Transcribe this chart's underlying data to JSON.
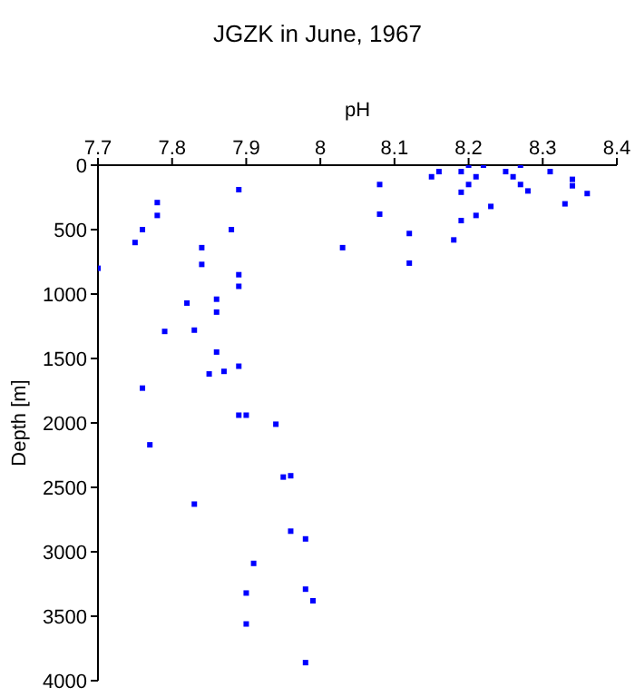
{
  "chart_data": {
    "type": "scatter",
    "title": "JGZK in June, 1967",
    "xlabel": "pH",
    "ylabel": "Depth [m]",
    "marker": "square",
    "series": [
      {
        "color": "#0000ff",
        "x": [
          7.89,
          7.78,
          7.78,
          7.76,
          7.75,
          7.88,
          7.84,
          7.84,
          7.7,
          8.03,
          7.89,
          7.89,
          7.82,
          7.86,
          7.86,
          7.79,
          7.83,
          7.86,
          7.89,
          7.87,
          7.85,
          7.76,
          7.89,
          7.9,
          7.94,
          7.77,
          7.95,
          7.96,
          7.83,
          7.96,
          7.98,
          7.91,
          7.9,
          7.98,
          7.99,
          7.9,
          7.98,
          8.08,
          8.08,
          8.15,
          8.16,
          8.19,
          8.2,
          8.22,
          8.19,
          8.2,
          8.21,
          8.19,
          8.21,
          8.23,
          8.25,
          8.26,
          8.27,
          8.27,
          8.28,
          8.31,
          8.34,
          8.34,
          8.36,
          8.33,
          8.12,
          8.12,
          8.18
        ],
        "values": [
          190,
          290,
          390,
          500,
          600,
          500,
          640,
          770,
          800,
          640,
          850,
          940,
          1070,
          1040,
          1140,
          1290,
          1280,
          1450,
          1560,
          1600,
          1620,
          1730,
          1940,
          1940,
          2010,
          2170,
          2420,
          2410,
          2630,
          2840,
          2900,
          3090,
          3320,
          3290,
          3380,
          3560,
          3860,
          150,
          380,
          90,
          50,
          50,
          0,
          0,
          210,
          150,
          90,
          430,
          390,
          320,
          50,
          90,
          0,
          150,
          200,
          50,
          110,
          160,
          220,
          300,
          530,
          760,
          580
        ]
      }
    ],
    "xlim": [
      7.7,
      8.4
    ],
    "xticks": [
      7.7,
      7.8,
      7.9,
      8,
      8.1,
      8.2,
      8.3,
      8.4
    ],
    "ylim": [
      4000,
      0
    ],
    "yticks": [
      0,
      500,
      1000,
      1500,
      2000,
      2500,
      3000,
      3500,
      4000
    ]
  }
}
